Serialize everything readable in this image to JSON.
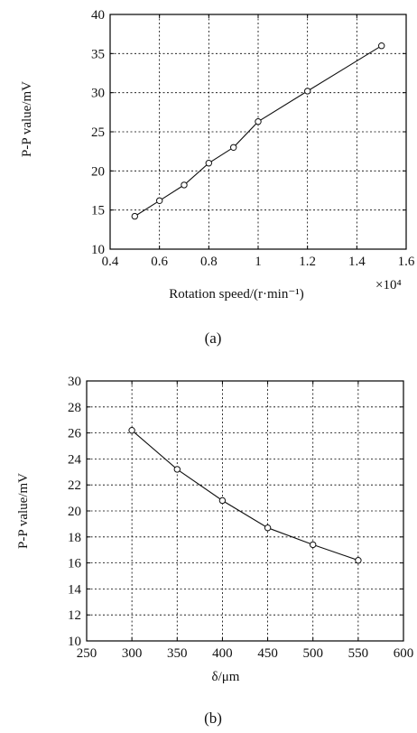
{
  "chart_data": [
    {
      "type": "line",
      "caption": "(a)",
      "xlabel": "Rotation speed/(r·min⁻¹)",
      "ylabel": "P-P value/mV",
      "x_multiplier": "×10⁴",
      "xlim": [
        0.4,
        1.6
      ],
      "ylim": [
        10,
        40
      ],
      "xticks": [
        "0.4",
        "0.6",
        "0.8",
        "1",
        "1.2",
        "1.4",
        "1.6"
      ],
      "yticks": [
        "10",
        "15",
        "20",
        "25",
        "30",
        "35",
        "40"
      ],
      "grid": true,
      "x": [
        0.5,
        0.6,
        0.7,
        0.8,
        0.9,
        1.0,
        1.2,
        1.5
      ],
      "y": [
        14.2,
        16.2,
        18.2,
        21.0,
        23.0,
        26.3,
        30.2,
        36.0
      ]
    },
    {
      "type": "line",
      "caption": "(b)",
      "xlabel": "δ/μm",
      "ylabel": "P-P value/mV",
      "xlim": [
        250,
        600
      ],
      "ylim": [
        10,
        30
      ],
      "xticks": [
        "250",
        "300",
        "350",
        "400",
        "450",
        "500",
        "550",
        "600"
      ],
      "yticks": [
        "10",
        "12",
        "14",
        "16",
        "18",
        "20",
        "22",
        "24",
        "26",
        "28",
        "30"
      ],
      "grid": true,
      "x": [
        300,
        350,
        400,
        450,
        500,
        550
      ],
      "y": [
        26.2,
        23.2,
        20.8,
        18.7,
        17.4,
        16.2
      ]
    }
  ]
}
